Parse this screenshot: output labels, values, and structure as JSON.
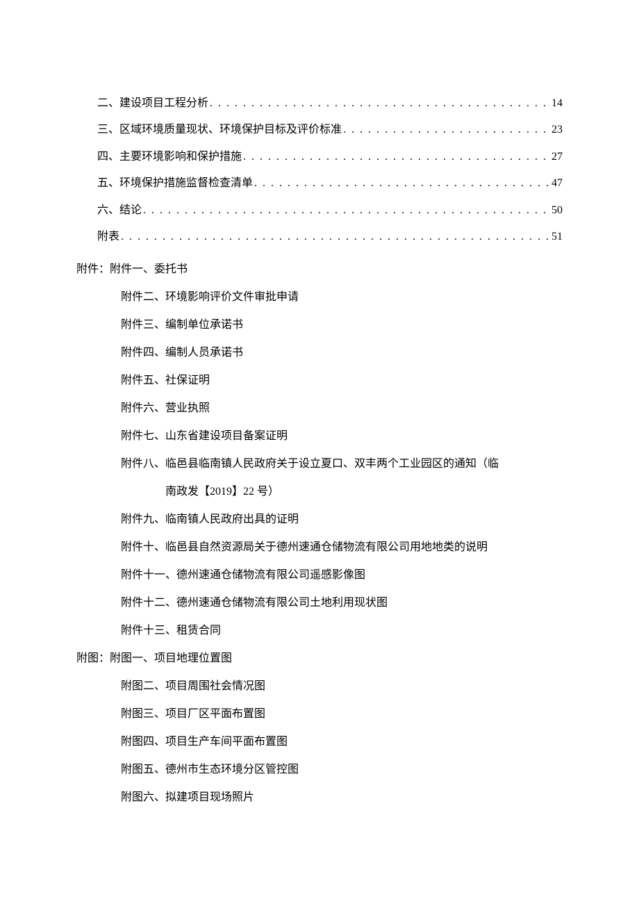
{
  "colors": {
    "background": "#ffffff",
    "text": "#000000"
  },
  "typography": {
    "font_family": "SimSun",
    "font_size_pt": 12,
    "line_height": 2.4
  },
  "toc": {
    "entries": [
      {
        "label": "二、建设项目工程分析",
        "page": "14"
      },
      {
        "label": "三、区域环境质量现状、环境保护目标及评价标准",
        "page": "23"
      },
      {
        "label": "四、主要环境影响和保护措施",
        "page": "27"
      },
      {
        "label": "五、环境保护措施监督检查清单",
        "page": "47"
      },
      {
        "label": "六、结论",
        "page": "50"
      },
      {
        "label": "附表",
        "page": "51"
      }
    ]
  },
  "attachments": {
    "prefix": "附件：",
    "first": "附件一、委托书",
    "items": [
      "附件二、环境影响评价文件审批申请",
      "附件三、编制单位承诺书",
      "附件四、编制人员承诺书",
      "附件五、社保证明",
      "附件六、营业执照",
      "附件七、山东省建设项目备案证明"
    ],
    "multiline_item": {
      "line1": "附件八、临邑县临南镇人民政府关于设立夏口、双丰两个工业园区的通知（临",
      "line2": "南政发【2019】22 号）"
    },
    "items_after": [
      "附件九、临南镇人民政府出具的证明",
      "附件十、临邑县自然资源局关于德州速通仓储物流有限公司用地地类的说明",
      "附件十一、德州速通仓储物流有限公司遥感影像图",
      "附件十二、德州速通仓储物流有限公司土地利用现状图",
      "附件十三、租赁合同"
    ]
  },
  "figures": {
    "prefix": "附图：",
    "first": "附图一、项目地理位置图",
    "items": [
      "附图二、项目周围社会情况图",
      "附图三、项目厂区平面布置图",
      "附图四、项目生产车间平面布置图",
      "附图五、德州市生态环境分区管控图",
      "附图六、拟建项目现场照片"
    ]
  }
}
